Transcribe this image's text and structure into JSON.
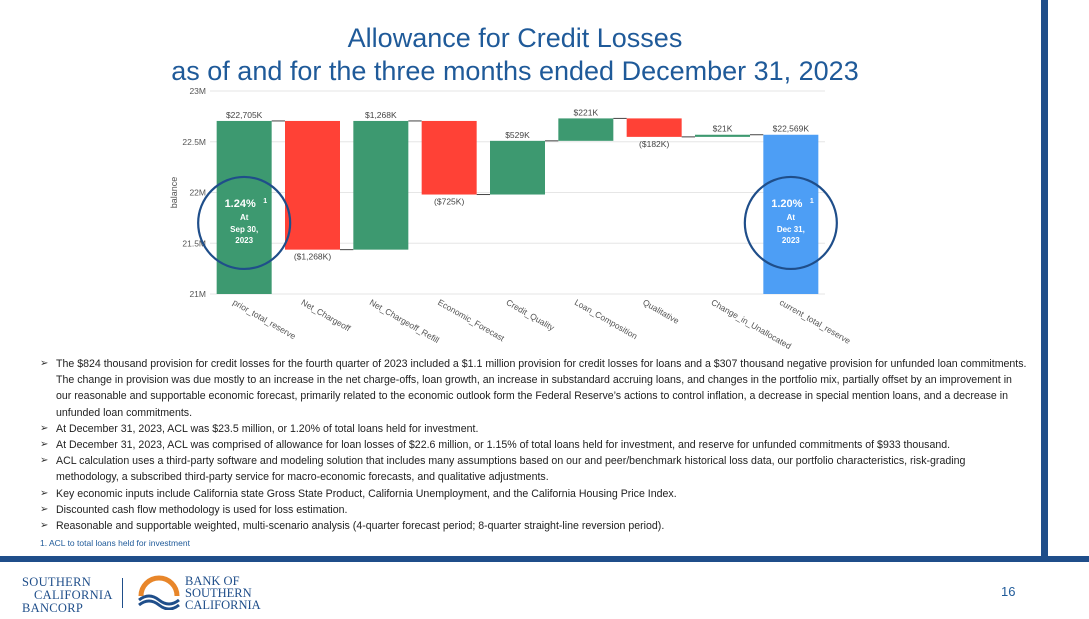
{
  "title": {
    "line1": "Allowance for Credit Losses",
    "line2": "as of and for the three months ended December 31, 2023"
  },
  "chart_data": {
    "type": "waterfall",
    "ylabel": "balance",
    "ylim": [
      21000,
      23000
    ],
    "yticks": [
      21000,
      21500,
      22000,
      22500,
      23000
    ],
    "ytick_labels": [
      "21M",
      "21.5M",
      "22M",
      "22.5M",
      "23M"
    ],
    "grid": true,
    "categories": [
      "prior_total_reserve",
      "Net_Chargeoff",
      "Net_Chargeoff_Refill",
      "Economic_Forecast",
      "Credit_Quality",
      "Loan_Composition",
      "Qualitative",
      "Change_in_Unallocated",
      "current_total_reserve"
    ],
    "values": [
      22705,
      -1268,
      1268,
      -725,
      529,
      221,
      -182,
      21,
      22569
    ],
    "value_labels": [
      "$22,705K",
      "($1,268K)",
      "$1,268K",
      "($725K)",
      "$529K",
      "$221K",
      "($182K)",
      "$21K",
      "$22,569K"
    ],
    "kinds": [
      "total",
      "delta",
      "delta",
      "delta",
      "delta",
      "delta",
      "delta",
      "delta",
      "total"
    ],
    "colors": {
      "increase": "#3d9970",
      "decrease": "#ff4136",
      "total_start": "#3d9970",
      "total_end": "#4d9ef5",
      "ring": "#1f4e8a"
    },
    "annotations": [
      {
        "pct": "1.24%",
        "sup": "1",
        "at": "At",
        "date1": "Sep 30,",
        "date2": "2023"
      },
      {
        "pct": "1.20%",
        "sup": "1",
        "at": "At",
        "date1": "Dec 31,",
        "date2": "2023"
      }
    ]
  },
  "bullets": [
    "The $824 thousand provision for credit losses for the fourth quarter of 2023 included a $1.1 million provision for credit losses for loans and a $307 thousand negative provision for unfunded loan commitments. The change in provision was due mostly to an increase in the net charge-offs, loan growth, an increase in substandard accruing loans, and changes in the portfolio mix, partially offset by an improvement in our reasonable and supportable economic forecast, primarily related to the economic outlook form the Federal Reserve’s actions to control inflation, a decrease in special mention loans, and a decrease in unfunded loan commitments.",
    "At December 31, 2023, ACL was $23.5 million, or 1.20% of total loans held for investment.",
    "At December 31, 2023, ACL was comprised of allowance for loan losses of $22.6 million, or 1.15% of total loans held for investment, and reserve for unfunded commitments of $933 thousand.",
    "ACL calculation uses a third-party software and modeling solution that includes many assumptions based on our and peer/benchmark historical loss data, our portfolio characteristics, risk-grading methodology, a subscribed third-party service for macro-economic forecasts, and qualitative adjustments.",
    "Key economic inputs include California state Gross State Product, California Unemployment, and the California Housing Price Index.",
    "Discounted cash flow methodology is used for loss estimation.",
    "Reasonable and supportable weighted, multi-scenario analysis (4-quarter forecast period; 8-quarter straight-line reversion period)."
  ],
  "footnote": "1. ACL to total loans held for investment",
  "logo_left": {
    "line1": "SOUTHERN",
    "line2": "CALIFORNIA",
    "line3": "BANCORP"
  },
  "logo_right": {
    "line1": "BANK OF",
    "line2": "SOUTHERN",
    "line3": "CALIFORNIA"
  },
  "colors": {
    "brand_blue": "#1f4e8a",
    "logo_orange": "#e8862a"
  },
  "page_number": "16"
}
